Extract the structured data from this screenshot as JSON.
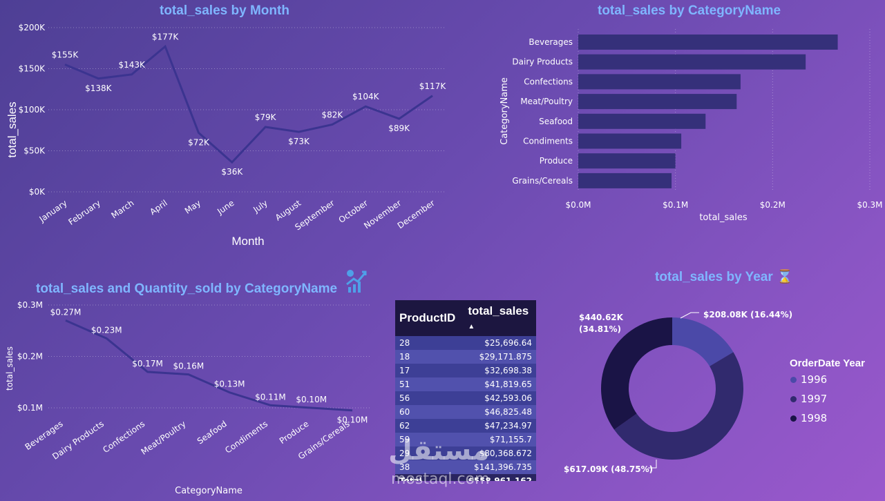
{
  "colors": {
    "title": "#7fb6ff",
    "line": "#3b3490",
    "bar": "#35307a",
    "y1996": "#4b49a8",
    "y1997": "#312a6e",
    "y1998": "#1a1446"
  },
  "chart_data": [
    {
      "id": "month",
      "type": "line",
      "title": "total_sales by Month",
      "xlabel": "Month",
      "ylabel": "total_sales",
      "categories": [
        "January",
        "February",
        "March",
        "April",
        "May",
        "June",
        "July",
        "August",
        "September",
        "October",
        "November",
        "December"
      ],
      "values": [
        155,
        138,
        143,
        177,
        72,
        36,
        79,
        73,
        82,
        104,
        89,
        117
      ],
      "data_labels": [
        "$155K",
        "$138K",
        "$143K",
        "$177K",
        "$72K",
        "$36K",
        "$79K",
        "$73K",
        "$82K",
        "$104K",
        "$89K",
        "$117K"
      ],
      "yticks": [
        "$0K",
        "$50K",
        "$100K",
        "$150K",
        "$200K"
      ],
      "ylim": [
        0,
        200
      ]
    },
    {
      "id": "category",
      "type": "bar",
      "title": "total_sales by CategoryName",
      "xlabel": "total_sales",
      "ylabel": "CategoryName",
      "categories": [
        "Beverages",
        "Dairy Products",
        "Confections",
        "Meat/Poultry",
        "Seafood",
        "Condiments",
        "Produce",
        "Grains/Cereals"
      ],
      "values": [
        0.267,
        0.234,
        0.167,
        0.163,
        0.131,
        0.106,
        0.1,
        0.096
      ],
      "xticks": [
        "$0.0M",
        "$0.1M",
        "$0.2M",
        "$0.3M"
      ],
      "xlim": [
        0,
        0.3
      ]
    },
    {
      "id": "catqty",
      "type": "line",
      "title": "total_sales and Quantity_sold by CategoryName",
      "xlabel": "CategoryName",
      "ylabel": "total_sales",
      "categories": [
        "Beverages",
        "Dairy Products",
        "Confections",
        "Meat/Poultry",
        "Seafood",
        "Condiments",
        "Produce",
        "Grains/Cereals"
      ],
      "values": [
        0.27,
        0.235,
        0.17,
        0.165,
        0.13,
        0.105,
        0.1,
        0.095
      ],
      "data_labels": [
        "$0.27M",
        "$0.23M",
        "$0.17M",
        "$0.16M",
        "$0.13M",
        "$0.11M",
        "$0.10M",
        "$0.10M"
      ],
      "yticks": [
        "$0.1M",
        "$0.2M",
        "$0.3M"
      ],
      "ylim": [
        0.1,
        0.3
      ]
    },
    {
      "id": "table",
      "type": "table",
      "columns": [
        "ProductID",
        "total_sales"
      ],
      "sort_indicator": "▲",
      "rows": [
        [
          "28",
          "$25,696.64"
        ],
        [
          "18",
          "$29,171.875"
        ],
        [
          "17",
          "$32,698.38"
        ],
        [
          "51",
          "$41,819.65"
        ],
        [
          "56",
          "$42,593.06"
        ],
        [
          "60",
          "$46,825.48"
        ],
        [
          "62",
          "$47,234.97"
        ],
        [
          "59",
          "$71,155.7"
        ],
        [
          "29",
          "$80,368.672"
        ],
        [
          "38",
          "$141,396.735"
        ]
      ],
      "total": [
        "Total",
        "$558,961.162"
      ]
    },
    {
      "id": "year",
      "type": "pie",
      "title": "total_sales by Year",
      "title_icon": "⌛",
      "legend_title": "OrderDate Year",
      "labels": [
        "1996",
        "1997",
        "1998"
      ],
      "values": [
        208.08,
        617.09,
        440.62
      ],
      "data_labels": [
        "$208.08K (16.44%)",
        "$617.09K (48.75%)",
        "$440.62K (34.81%)"
      ]
    }
  ],
  "watermark": {
    "arabic": "مستقل",
    "latin": "mostaql.com"
  }
}
